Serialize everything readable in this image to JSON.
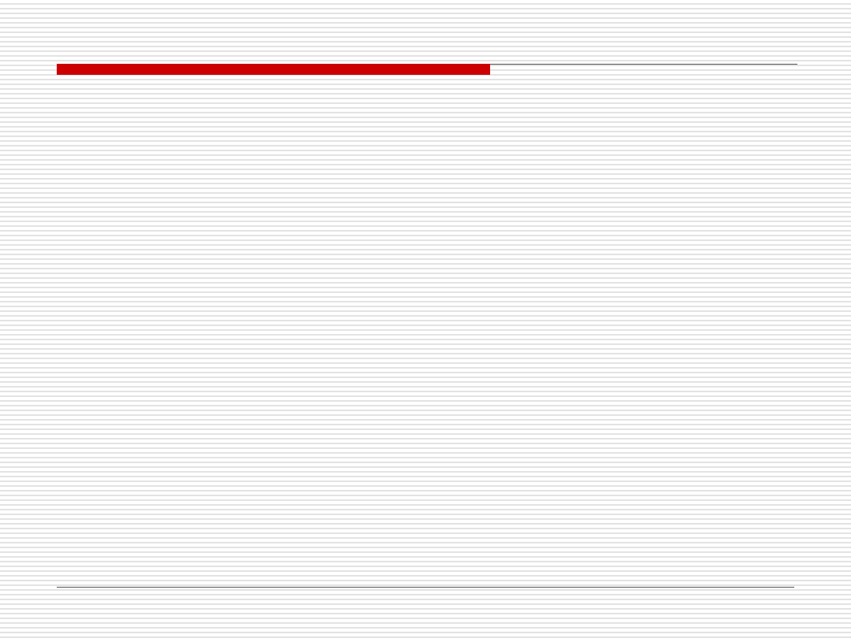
{
  "slide": {
    "accent_color": "#cc0000",
    "rule_color": "#555555"
  }
}
